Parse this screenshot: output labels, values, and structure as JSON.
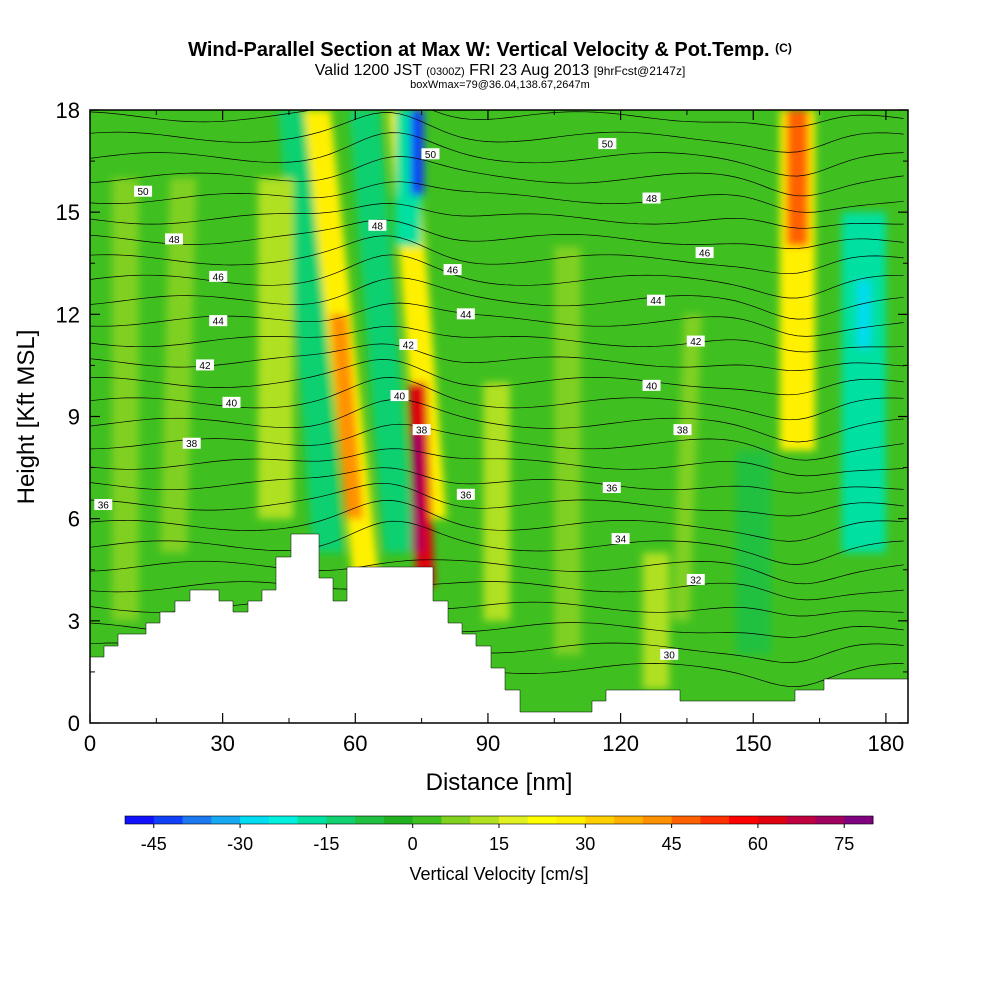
{
  "header": {
    "title_main": "Wind-Parallel Section at Max W: Vertical Velocity & Pot.Temp.",
    "title_c": "(C)",
    "valid_a": "Valid 1200 JST",
    "valid_z": "(0300Z)",
    "valid_b": "FRI 23 Aug 2013",
    "valid_fcst": "[9hrFcst@2147z]",
    "box": "boxWmax=79@36.04,138.67,2647m"
  },
  "chart_data": {
    "type": "heatmap",
    "xlabel": "Distance [nm]",
    "ylabel": "Height [Kft MSL]",
    "xlim": [
      0,
      185
    ],
    "ylim": [
      0,
      18
    ],
    "xticks": [
      "0",
      "30",
      "60",
      "90",
      "120",
      "150",
      "180"
    ],
    "yticks": [
      "0",
      "3",
      "6",
      "9",
      "12",
      "15",
      "18"
    ],
    "colorbar": {
      "label": "Vertical Velocity [cm/s]",
      "ticks": [
        "-45",
        "-30",
        "-15",
        "0",
        "15",
        "30",
        "45",
        "60",
        "75"
      ],
      "levels": [
        -50,
        -45,
        -40,
        -35,
        -30,
        -25,
        -20,
        -15,
        -10,
        -5,
        0,
        5,
        10,
        15,
        20,
        25,
        30,
        35,
        40,
        45,
        50,
        55,
        60,
        65,
        70,
        75,
        80
      ],
      "colors": [
        "#1010ff",
        "#1040f8",
        "#1c78f0",
        "#16a8f0",
        "#00dcf0",
        "#00f0e0",
        "#00e0a0",
        "#10d070",
        "#20c040",
        "#20b020",
        "#40c020",
        "#80d020",
        "#b0e020",
        "#e0f020",
        "#ffff00",
        "#fff000",
        "#ffd000",
        "#ffb000",
        "#ff9000",
        "#ff6000",
        "#ff3000",
        "#ff0000",
        "#e00010",
        "#c00040",
        "#a00060",
        "#800080"
      ]
    },
    "theta_contour_labels": [
      {
        "label": "50",
        "x": 12,
        "y": 15.6
      },
      {
        "label": "48",
        "x": 19,
        "y": 14.2
      },
      {
        "label": "46",
        "x": 29,
        "y": 13.1
      },
      {
        "label": "44",
        "x": 29,
        "y": 11.8
      },
      {
        "label": "42",
        "x": 26,
        "y": 10.5
      },
      {
        "label": "40",
        "x": 32,
        "y": 9.4
      },
      {
        "label": "38",
        "x": 23,
        "y": 8.2
      },
      {
        "label": "36",
        "x": 3,
        "y": 6.4
      },
      {
        "label": "48",
        "x": 65,
        "y": 14.6
      },
      {
        "label": "50",
        "x": 77,
        "y": 16.7
      },
      {
        "label": "46",
        "x": 82,
        "y": 13.3
      },
      {
        "label": "44",
        "x": 85,
        "y": 12.0
      },
      {
        "label": "42",
        "x": 72,
        "y": 11.1
      },
      {
        "label": "40",
        "x": 70,
        "y": 9.6
      },
      {
        "label": "38",
        "x": 75,
        "y": 8.6
      },
      {
        "label": "36",
        "x": 85,
        "y": 6.7
      },
      {
        "label": "50",
        "x": 117,
        "y": 17.0
      },
      {
        "label": "48",
        "x": 127,
        "y": 15.4
      },
      {
        "label": "46",
        "x": 139,
        "y": 13.8
      },
      {
        "label": "44",
        "x": 128,
        "y": 12.4
      },
      {
        "label": "42",
        "x": 137,
        "y": 11.2
      },
      {
        "label": "40",
        "x": 127,
        "y": 9.9
      },
      {
        "label": "38",
        "x": 134,
        "y": 8.6
      },
      {
        "label": "36",
        "x": 118,
        "y": 6.9
      },
      {
        "label": "34",
        "x": 120,
        "y": 5.4
      },
      {
        "label": "32",
        "x": 137,
        "y": 4.2
      },
      {
        "label": "30",
        "x": 131,
        "y": 2.0
      }
    ]
  }
}
